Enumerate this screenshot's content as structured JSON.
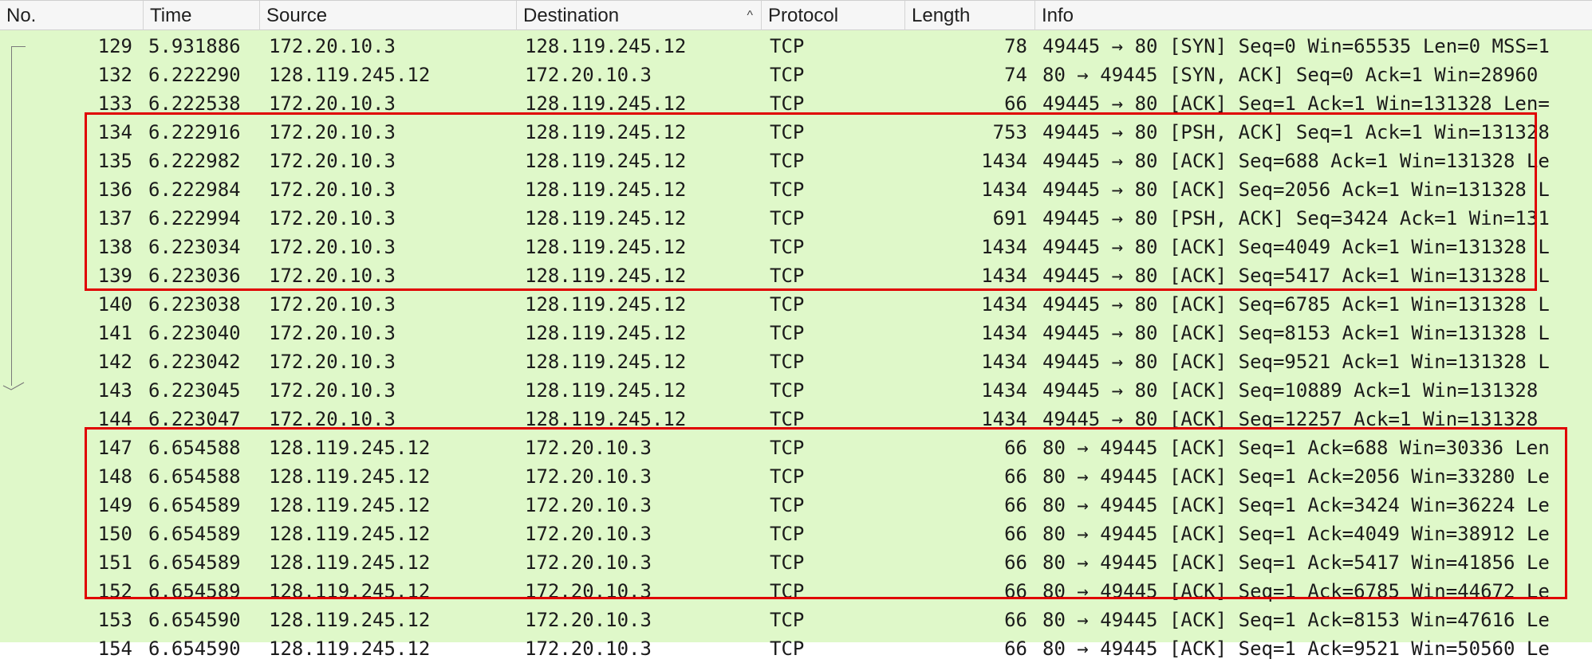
{
  "columns": {
    "no": "No.",
    "time": "Time",
    "source": "Source",
    "destination": "Destination",
    "protocol": "Protocol",
    "length": "Length",
    "info": "Info"
  },
  "sort_indicator": "^",
  "colors": {
    "row_background": "#dff8c9",
    "highlight_box": "#e00000"
  },
  "packets": [
    {
      "no": "129",
      "time": "5.931886",
      "src": "172.20.10.3",
      "dst": "128.119.245.12",
      "proto": "TCP",
      "len": "78",
      "info": "49445 → 80 [SYN] Seq=0 Win=65535 Len=0 MSS=1"
    },
    {
      "no": "132",
      "time": "6.222290",
      "src": "128.119.245.12",
      "dst": "172.20.10.3",
      "proto": "TCP",
      "len": "74",
      "info": "80 → 49445 [SYN, ACK] Seq=0 Ack=1 Win=28960"
    },
    {
      "no": "133",
      "time": "6.222538",
      "src": "172.20.10.3",
      "dst": "128.119.245.12",
      "proto": "TCP",
      "len": "66",
      "info": "49445 → 80 [ACK] Seq=1 Ack=1 Win=131328 Len="
    },
    {
      "no": "134",
      "time": "6.222916",
      "src": "172.20.10.3",
      "dst": "128.119.245.12",
      "proto": "TCP",
      "len": "753",
      "info": "49445 → 80 [PSH, ACK] Seq=1 Ack=1 Win=131328"
    },
    {
      "no": "135",
      "time": "6.222982",
      "src": "172.20.10.3",
      "dst": "128.119.245.12",
      "proto": "TCP",
      "len": "1434",
      "info": "49445 → 80 [ACK] Seq=688 Ack=1 Win=131328 Le"
    },
    {
      "no": "136",
      "time": "6.222984",
      "src": "172.20.10.3",
      "dst": "128.119.245.12",
      "proto": "TCP",
      "len": "1434",
      "info": "49445 → 80 [ACK] Seq=2056 Ack=1 Win=131328 L"
    },
    {
      "no": "137",
      "time": "6.222994",
      "src": "172.20.10.3",
      "dst": "128.119.245.12",
      "proto": "TCP",
      "len": "691",
      "info": "49445 → 80 [PSH, ACK] Seq=3424 Ack=1 Win=131"
    },
    {
      "no": "138",
      "time": "6.223034",
      "src": "172.20.10.3",
      "dst": "128.119.245.12",
      "proto": "TCP",
      "len": "1434",
      "info": "49445 → 80 [ACK] Seq=4049 Ack=1 Win=131328 L"
    },
    {
      "no": "139",
      "time": "6.223036",
      "src": "172.20.10.3",
      "dst": "128.119.245.12",
      "proto": "TCP",
      "len": "1434",
      "info": "49445 → 80 [ACK] Seq=5417 Ack=1 Win=131328 L"
    },
    {
      "no": "140",
      "time": "6.223038",
      "src": "172.20.10.3",
      "dst": "128.119.245.12",
      "proto": "TCP",
      "len": "1434",
      "info": "49445 → 80 [ACK] Seq=6785 Ack=1 Win=131328 L"
    },
    {
      "no": "141",
      "time": "6.223040",
      "src": "172.20.10.3",
      "dst": "128.119.245.12",
      "proto": "TCP",
      "len": "1434",
      "info": "49445 → 80 [ACK] Seq=8153 Ack=1 Win=131328 L"
    },
    {
      "no": "142",
      "time": "6.223042",
      "src": "172.20.10.3",
      "dst": "128.119.245.12",
      "proto": "TCP",
      "len": "1434",
      "info": "49445 → 80 [ACK] Seq=9521 Ack=1 Win=131328 L"
    },
    {
      "no": "143",
      "time": "6.223045",
      "src": "172.20.10.3",
      "dst": "128.119.245.12",
      "proto": "TCP",
      "len": "1434",
      "info": "49445 → 80 [ACK] Seq=10889 Ack=1 Win=131328"
    },
    {
      "no": "144",
      "time": "6.223047",
      "src": "172.20.10.3",
      "dst": "128.119.245.12",
      "proto": "TCP",
      "len": "1434",
      "info": "49445 → 80 [ACK] Seq=12257 Ack=1 Win=131328"
    },
    {
      "no": "147",
      "time": "6.654588",
      "src": "128.119.245.12",
      "dst": "172.20.10.3",
      "proto": "TCP",
      "len": "66",
      "info": "80 → 49445 [ACK] Seq=1 Ack=688 Win=30336 Len"
    },
    {
      "no": "148",
      "time": "6.654588",
      "src": "128.119.245.12",
      "dst": "172.20.10.3",
      "proto": "TCP",
      "len": "66",
      "info": "80 → 49445 [ACK] Seq=1 Ack=2056 Win=33280 Le"
    },
    {
      "no": "149",
      "time": "6.654589",
      "src": "128.119.245.12",
      "dst": "172.20.10.3",
      "proto": "TCP",
      "len": "66",
      "info": "80 → 49445 [ACK] Seq=1 Ack=3424 Win=36224 Le"
    },
    {
      "no": "150",
      "time": "6.654589",
      "src": "128.119.245.12",
      "dst": "172.20.10.3",
      "proto": "TCP",
      "len": "66",
      "info": "80 → 49445 [ACK] Seq=1 Ack=4049 Win=38912 Le"
    },
    {
      "no": "151",
      "time": "6.654589",
      "src": "128.119.245.12",
      "dst": "172.20.10.3",
      "proto": "TCP",
      "len": "66",
      "info": "80 → 49445 [ACK] Seq=1 Ack=5417 Win=41856 Le"
    },
    {
      "no": "152",
      "time": "6.654589",
      "src": "128.119.245.12",
      "dst": "172.20.10.3",
      "proto": "TCP",
      "len": "66",
      "info": "80 → 49445 [ACK] Seq=1 Ack=6785 Win=44672 Le"
    },
    {
      "no": "153",
      "time": "6.654590",
      "src": "128.119.245.12",
      "dst": "172.20.10.3",
      "proto": "TCP",
      "len": "66",
      "info": "80 → 49445 [ACK] Seq=1 Ack=8153 Win=47616 Le"
    },
    {
      "no": "154",
      "time": "6.654590",
      "src": "128.119.245.12",
      "dst": "172.20.10.3",
      "proto": "TCP",
      "len": "66",
      "info": "80 → 49445 [ACK] Seq=1 Ack=9521 Win=50560 Le"
    }
  ]
}
